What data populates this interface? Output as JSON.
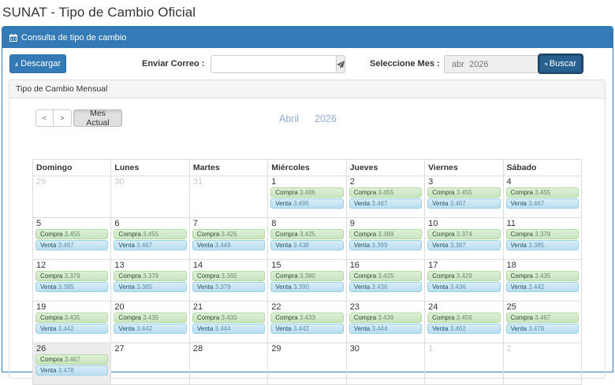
{
  "page": {
    "title": "SUNAT - Tipo de Cambio Oficial"
  },
  "panel": {
    "heading": "Consulta de tipo de cambio",
    "heading_icon": "calendar-icon"
  },
  "toolbar": {
    "download_label": "Descargar",
    "download_icon": "download-icon",
    "email_label": "Enviar Correo :",
    "email_value": "",
    "email_placeholder": "",
    "send_icon": "paper-plane-icon",
    "month_label": "Seleccione Mes :",
    "month_value": "abr  2026",
    "month_icon": "calendar-icon",
    "search_label": "Buscar",
    "search_icon": "search-icon"
  },
  "colors": {
    "primary": "#337ab7",
    "compra_bg": "#dff0d8",
    "venta_bg": "#d9edf7",
    "title_blue": "#8fb0d4",
    "today_bg": "#ececec"
  },
  "monthly": {
    "heading": "Tipo de Cambio Mensual",
    "nav": {
      "prev": "<",
      "next": ">",
      "today": "Mes Actual"
    },
    "month_name": "Abril",
    "year": "2026",
    "weekdays": [
      "Domingo",
      "Lunes",
      "Martes",
      "Miércoles",
      "Jueves",
      "Viernes",
      "Sábado"
    ],
    "compra_label": "Compra",
    "venta_label": "Venta",
    "weeks": [
      [
        {
          "day": "29",
          "other": true
        },
        {
          "day": "30",
          "other": true
        },
        {
          "day": "31",
          "other": true
        },
        {
          "day": "1",
          "compra": "3.486",
          "venta": "3.495"
        },
        {
          "day": "2",
          "compra": "3.455",
          "venta": "3.467"
        },
        {
          "day": "3",
          "compra": "3.455",
          "venta": "3.467"
        },
        {
          "day": "4",
          "compra": "3.455",
          "venta": "3.467"
        }
      ],
      [
        {
          "day": "5",
          "compra": "3.455",
          "venta": "3.467"
        },
        {
          "day": "6",
          "compra": "3.455",
          "venta": "3.467"
        },
        {
          "day": "7",
          "compra": "3.426",
          "venta": "3.449"
        },
        {
          "day": "8",
          "compra": "3.425",
          "venta": "3.438"
        },
        {
          "day": "9",
          "compra": "3.389",
          "venta": "3.399"
        },
        {
          "day": "10",
          "compra": "3.374",
          "venta": "3.387"
        },
        {
          "day": "11",
          "compra": "3.379",
          "venta": "3.385"
        }
      ],
      [
        {
          "day": "12",
          "compra": "3.379",
          "venta": "3.385"
        },
        {
          "day": "13",
          "compra": "3.379",
          "venta": "3.385"
        },
        {
          "day": "14",
          "compra": "3.365",
          "venta": "3.379"
        },
        {
          "day": "15",
          "compra": "3.380",
          "venta": "3.390"
        },
        {
          "day": "16",
          "compra": "3.425",
          "venta": "3.436"
        },
        {
          "day": "17",
          "compra": "3.429",
          "venta": "3.436"
        },
        {
          "day": "18",
          "compra": "3.435",
          "venta": "3.442"
        }
      ],
      [
        {
          "day": "19",
          "compra": "3.435",
          "venta": "3.442"
        },
        {
          "day": "20",
          "compra": "3.435",
          "venta": "3.442"
        },
        {
          "day": "21",
          "compra": "3.430",
          "venta": "3.444"
        },
        {
          "day": "22",
          "compra": "3.433",
          "venta": "3.442"
        },
        {
          "day": "23",
          "compra": "3.436",
          "venta": "3.444"
        },
        {
          "day": "24",
          "compra": "3.456",
          "venta": "3.462"
        },
        {
          "day": "25",
          "compra": "3.467",
          "venta": "3.478"
        }
      ],
      [
        {
          "day": "26",
          "compra": "3.467",
          "venta": "3.478",
          "today": true
        },
        {
          "day": "27"
        },
        {
          "day": "28"
        },
        {
          "day": "29"
        },
        {
          "day": "30"
        },
        {
          "day": "1",
          "other": true
        },
        {
          "day": "2",
          "other": true
        }
      ]
    ]
  }
}
